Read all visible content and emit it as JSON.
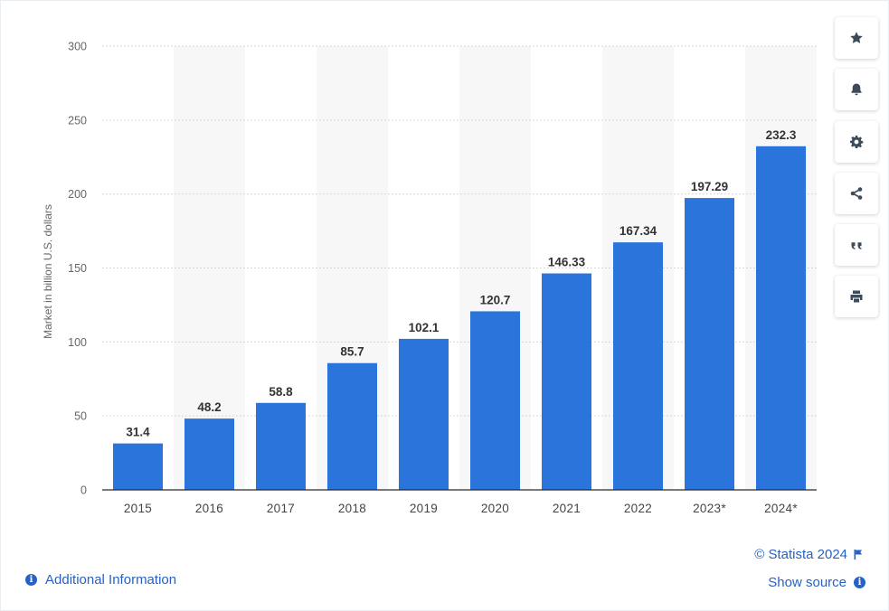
{
  "chart_data": {
    "type": "bar",
    "categories": [
      "2015",
      "2016",
      "2017",
      "2018",
      "2019",
      "2020",
      "2021",
      "2022",
      "2023*",
      "2024*"
    ],
    "values": [
      31.4,
      48.2,
      58.8,
      85.7,
      102.1,
      120.7,
      146.33,
      167.34,
      197.29,
      232.3
    ],
    "value_labels": [
      "31.4",
      "48.2",
      "58.8",
      "85.7",
      "102.1",
      "120.7",
      "146.33",
      "167.34",
      "197.29",
      "232.3"
    ],
    "title": "",
    "xlabel": "",
    "ylabel": "Market in billion U.S. dollars",
    "ylim": [
      0,
      300
    ],
    "yticks": [
      0,
      50,
      100,
      150,
      200,
      250,
      300
    ],
    "grid": true,
    "bar_color": "#2a74db",
    "band_color": "#f7f7f8"
  },
  "toolbar": {
    "buttons": [
      {
        "name": "favorite-button",
        "icon": "star-icon"
      },
      {
        "name": "notification-button",
        "icon": "bell-icon"
      },
      {
        "name": "settings-button",
        "icon": "gear-icon"
      },
      {
        "name": "share-button",
        "icon": "share-icon"
      },
      {
        "name": "cite-button",
        "icon": "quote-icon"
      },
      {
        "name": "print-button",
        "icon": "printer-icon"
      }
    ]
  },
  "footer": {
    "additional_info": "Additional Information",
    "copyright": "© Statista 2024",
    "show_source": "Show source",
    "info_glyph": "i"
  },
  "colors": {
    "link": "#2662c5",
    "bar": "#2a74db"
  }
}
